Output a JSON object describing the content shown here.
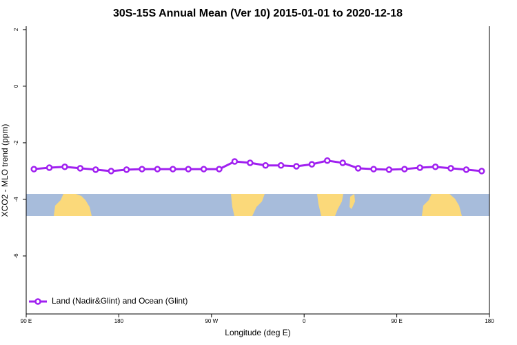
{
  "chart_data": {
    "type": "line",
    "title": "30S-15S Annual Mean (Ver 10)   2015-01-01 to 2020-12-18",
    "x_label": "Longitude (deg E)",
    "y_label": "XCO2 - MLO trend (ppm)",
    "x": [
      97.5,
      112.5,
      127.5,
      142.5,
      157.5,
      172.5,
      187.5,
      202.5,
      217.5,
      232.5,
      247.5,
      262.5,
      277.5,
      292.5,
      307.5,
      322.5,
      337.5,
      352.5,
      367.5,
      382.5,
      397.5,
      412.5,
      427.5,
      442.5,
      457.5,
      472.5,
      487.5,
      502.5,
      517.5,
      532.5
    ],
    "series": [
      {
        "name": "Land (Nadir&Glint) and Ocean (Glint)",
        "color": "#a020f0",
        "values": [
          -2.93,
          -2.88,
          -2.85,
          -2.9,
          -2.95,
          -3.0,
          -2.95,
          -2.93,
          -2.93,
          -2.93,
          -2.93,
          -2.93,
          -2.93,
          -2.66,
          -2.71,
          -2.8,
          -2.8,
          -2.83,
          -2.76,
          -2.63,
          -2.71,
          -2.9,
          -2.93,
          -2.95,
          -2.93,
          -2.88,
          -2.85,
          -2.9,
          -2.95,
          -3.0
        ]
      }
    ],
    "xlim": [
      90,
      540
    ],
    "xticks": [
      {
        "value": 90,
        "label": "90 E"
      },
      {
        "value": 180,
        "label": "180"
      },
      {
        "value": 270,
        "label": "90 W"
      },
      {
        "value": 360,
        "label": "0"
      },
      {
        "value": 450,
        "label": "90 E"
      },
      {
        "value": 540,
        "label": "180"
      }
    ],
    "ylim": [
      -8.05,
      2.12
    ],
    "yticks": [
      -6,
      -4,
      -2,
      0,
      2
    ],
    "legend": "bottom-left"
  }
}
